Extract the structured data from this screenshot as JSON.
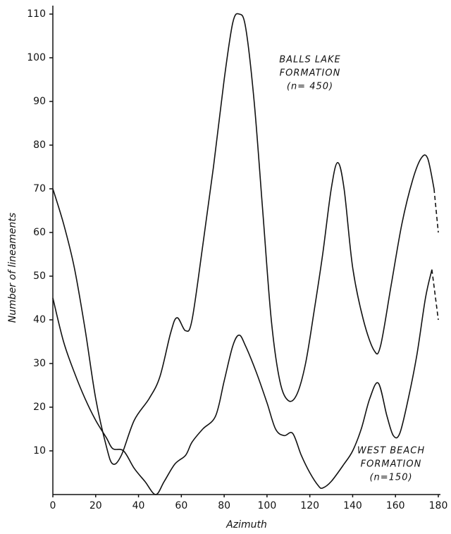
{
  "chart_data": {
    "type": "line",
    "x_label": "Azimuth",
    "y_label": "Number of lineaments",
    "xlim": [
      0,
      180
    ],
    "xticks": [
      0,
      20,
      40,
      60,
      80,
      100,
      120,
      140,
      160,
      180
    ],
    "ylim": [
      0,
      110
    ],
    "yticks": [
      10,
      20,
      30,
      40,
      50,
      60,
      70,
      80,
      90,
      100,
      110
    ],
    "dashed_last_segment": true,
    "series": [
      {
        "color": "#111111",
        "x": [
          0,
          5,
          10,
          15,
          20,
          25,
          28,
          32,
          38,
          45,
          50,
          55,
          58,
          62,
          65,
          70,
          75,
          80,
          84,
          87,
          90,
          94,
          98,
          102,
          106,
          110,
          114,
          118,
          122,
          126,
          130,
          133,
          136,
          140,
          145,
          150,
          153,
          158,
          163,
          168,
          172,
          175,
          178,
          180
        ],
        "values": [
          70,
          62,
          52,
          38,
          22,
          11,
          7,
          9,
          17,
          22,
          27,
          37,
          40.5,
          37.5,
          40,
          57,
          75,
          95,
          108,
          110,
          107,
          90,
          65,
          40,
          26,
          21.5,
          23,
          30,
          42,
          55,
          70,
          76,
          70,
          52,
          40,
          33,
          34,
          48,
          62,
          72,
          77,
          77,
          70,
          60
        ],
        "annotation": [
          "BALLS LAKE",
          "FORMATION",
          "(n= 450)"
        ]
      },
      {
        "color": "#111111",
        "x": [
          0,
          5,
          10,
          15,
          20,
          25,
          28,
          33,
          38,
          43,
          48,
          52,
          57,
          62,
          65,
          70,
          76,
          80,
          84,
          87,
          90,
          95,
          100,
          104,
          108,
          112,
          116,
          120,
          124,
          126,
          130,
          136,
          140,
          144,
          148,
          152,
          156,
          159,
          162,
          166,
          170,
          174,
          177,
          180
        ],
        "values": [
          45,
          35,
          28,
          22,
          17,
          13,
          10.5,
          10,
          6,
          3,
          0,
          3,
          7,
          9,
          12,
          15,
          18,
          26,
          34,
          36.5,
          34,
          28,
          21,
          15,
          13.5,
          14,
          9,
          5,
          2,
          1.5,
          3,
          7,
          10,
          15,
          22,
          25.5,
          18,
          13.5,
          14,
          22,
          32,
          45,
          51.5,
          40
        ],
        "annotation": [
          "WEST BEACH",
          "FORMATION",
          "(n=150)"
        ]
      }
    ]
  }
}
